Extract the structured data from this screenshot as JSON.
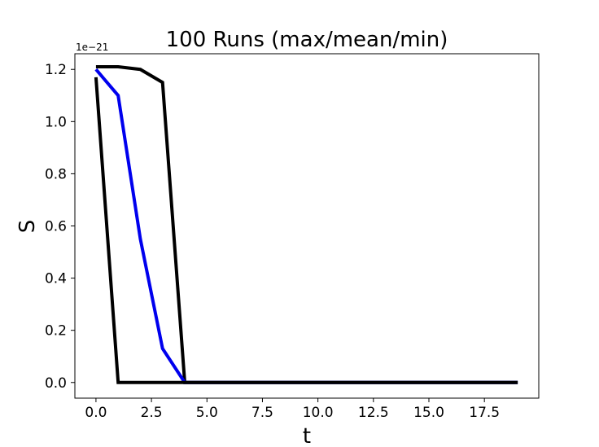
{
  "chart_data": {
    "type": "line",
    "title": "100 Runs (max/mean/min)",
    "xlabel": "t",
    "ylabel": "S",
    "y_offset_label": "1e−21",
    "xlim": [
      -0.95,
      19.95
    ],
    "ylim": [
      -0.06,
      1.26
    ],
    "x_ticks": [
      0.0,
      2.5,
      5.0,
      7.5,
      10.0,
      12.5,
      15.0,
      17.5
    ],
    "x_tick_labels": [
      "0.0",
      "2.5",
      "5.0",
      "7.5",
      "10.0",
      "12.5",
      "15.0",
      "17.5"
    ],
    "y_ticks": [
      0.0,
      0.2,
      0.4,
      0.6,
      0.8,
      1.0,
      1.2
    ],
    "y_tick_labels": [
      "0.0",
      "0.2",
      "0.4",
      "0.6",
      "0.8",
      "1.0",
      "1.2"
    ],
    "grid": false,
    "x": [
      0,
      1,
      2,
      3,
      4,
      5,
      6,
      7,
      8,
      9,
      10,
      11,
      12,
      13,
      14,
      15,
      16,
      17,
      18,
      19
    ],
    "series": [
      {
        "color": "#000000",
        "values": [
          1.21,
          1.21,
          1.2,
          1.15,
          0,
          0,
          0,
          0,
          0,
          0,
          0,
          0,
          0,
          0,
          0,
          0,
          0,
          0,
          0,
          0
        ]
      },
      {
        "color": "#0000ee",
        "values": [
          1.2,
          1.1,
          0.55,
          0.13,
          0,
          0,
          0,
          0,
          0,
          0,
          0,
          0,
          0,
          0,
          0,
          0,
          0,
          0,
          0,
          0
        ]
      },
      {
        "color": "#000000",
        "values": [
          1.17,
          0,
          0,
          0,
          0,
          0,
          0,
          0,
          0,
          0,
          0,
          0,
          0,
          0,
          0,
          0,
          0,
          0,
          0,
          0
        ]
      }
    ]
  }
}
